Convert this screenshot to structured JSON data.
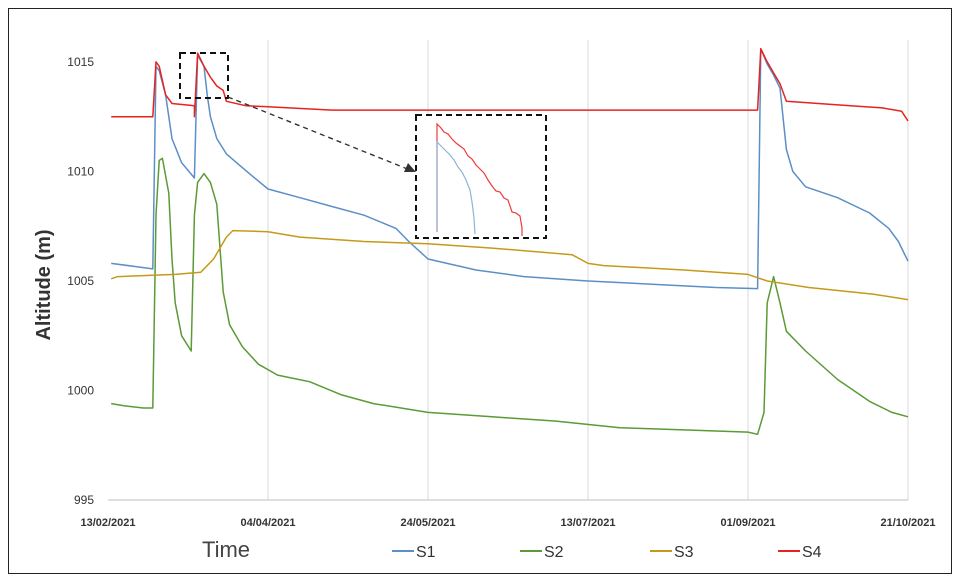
{
  "chart_data": {
    "type": "line",
    "title": "",
    "xlabel": "Time",
    "ylabel": "Altitude (m)",
    "x_ticks": [
      "13/02/2021",
      "04/04/2021",
      "24/05/2021",
      "13/07/2021",
      "01/09/2021",
      "21/10/2021"
    ],
    "x_range": [
      "2021-02-13",
      "2021-10-21"
    ],
    "ylim": [
      995,
      1016
    ],
    "y_ticks": [
      995,
      1000,
      1005,
      1010,
      1015
    ],
    "grid": "vertical",
    "legend": "bottom",
    "series": [
      {
        "name": "S1",
        "color": "#5b8fc7",
        "points": [
          [
            "2021-02-14",
            1005.8
          ],
          [
            "2021-02-22",
            1005.65
          ],
          [
            "2021-02-27",
            1005.55
          ],
          [
            "2021-02-28",
            1014.8
          ],
          [
            "2021-03-01",
            1014.6
          ],
          [
            "2021-03-03",
            1013.5
          ],
          [
            "2021-03-05",
            1011.5
          ],
          [
            "2021-03-08",
            1010.4
          ],
          [
            "2021-03-12",
            1009.7
          ],
          [
            "2021-03-13",
            1015.3
          ],
          [
            "2021-03-15",
            1014.8
          ],
          [
            "2021-03-16",
            1013.5
          ],
          [
            "2021-03-17",
            1012.5
          ],
          [
            "2021-03-19",
            1011.5
          ],
          [
            "2021-03-22",
            1010.8
          ],
          [
            "2021-03-26",
            1010.3
          ],
          [
            "2021-03-30",
            1009.8
          ],
          [
            "2021-04-04",
            1009.2
          ],
          [
            "2021-04-14",
            1008.8
          ],
          [
            "2021-04-24",
            1008.4
          ],
          [
            "2021-05-04",
            1008.0
          ],
          [
            "2021-05-14",
            1007.4
          ],
          [
            "2021-05-18",
            1006.8
          ],
          [
            "2021-05-24",
            1006.0
          ],
          [
            "2021-06-08",
            1005.5
          ],
          [
            "2021-06-23",
            1005.2
          ],
          [
            "2021-07-13",
            1005.0
          ],
          [
            "2021-08-02",
            1004.85
          ],
          [
            "2021-08-22",
            1004.7
          ],
          [
            "2021-09-04",
            1004.65
          ],
          [
            "2021-09-05",
            1015.6
          ],
          [
            "2021-09-07",
            1014.9
          ],
          [
            "2021-09-09",
            1014.4
          ],
          [
            "2021-09-11",
            1013.8
          ],
          [
            "2021-09-13",
            1011.0
          ],
          [
            "2021-09-15",
            1010.0
          ],
          [
            "2021-09-19",
            1009.3
          ],
          [
            "2021-09-29",
            1008.8
          ],
          [
            "2021-10-09",
            1008.1
          ],
          [
            "2021-10-15",
            1007.4
          ],
          [
            "2021-10-18",
            1006.8
          ],
          [
            "2021-10-21",
            1005.9
          ]
        ]
      },
      {
        "name": "S2",
        "color": "#5b9a35",
        "points": [
          [
            "2021-02-14",
            999.4
          ],
          [
            "2021-02-18",
            999.3
          ],
          [
            "2021-02-24",
            999.2
          ],
          [
            "2021-02-27",
            999.2
          ],
          [
            "2021-02-28",
            1008.0
          ],
          [
            "2021-03-01",
            1010.5
          ],
          [
            "2021-03-02",
            1010.6
          ],
          [
            "2021-03-04",
            1009.0
          ],
          [
            "2021-03-05",
            1006.0
          ],
          [
            "2021-03-06",
            1004.0
          ],
          [
            "2021-03-08",
            1002.5
          ],
          [
            "2021-03-11",
            1001.8
          ],
          [
            "2021-03-12",
            1008.0
          ],
          [
            "2021-03-13",
            1009.5
          ],
          [
            "2021-03-15",
            1009.9
          ],
          [
            "2021-03-17",
            1009.5
          ],
          [
            "2021-03-19",
            1008.5
          ],
          [
            "2021-03-21",
            1004.5
          ],
          [
            "2021-03-23",
            1003.0
          ],
          [
            "2021-03-27",
            1002.0
          ],
          [
            "2021-04-01",
            1001.2
          ],
          [
            "2021-04-07",
            1000.7
          ],
          [
            "2021-04-17",
            1000.4
          ],
          [
            "2021-04-27",
            999.8
          ],
          [
            "2021-05-07",
            999.4
          ],
          [
            "2021-05-24",
            999.0
          ],
          [
            "2021-06-13",
            998.8
          ],
          [
            "2021-07-03",
            998.6
          ],
          [
            "2021-07-23",
            998.3
          ],
          [
            "2021-08-12",
            998.2
          ],
          [
            "2021-09-01",
            998.1
          ],
          [
            "2021-09-04",
            998.0
          ],
          [
            "2021-09-06",
            999.0
          ],
          [
            "2021-09-07",
            1004.0
          ],
          [
            "2021-09-09",
            1005.2
          ],
          [
            "2021-09-11",
            1004.0
          ],
          [
            "2021-09-13",
            1002.7
          ],
          [
            "2021-09-19",
            1001.8
          ],
          [
            "2021-09-29",
            1000.5
          ],
          [
            "2021-10-09",
            999.5
          ],
          [
            "2021-10-16",
            999.0
          ],
          [
            "2021-10-21",
            998.8
          ]
        ]
      },
      {
        "name": "S3",
        "color": "#c59a1a",
        "points": [
          [
            "2021-02-14",
            1005.1
          ],
          [
            "2021-02-16",
            1005.2
          ],
          [
            "2021-03-06",
            1005.3
          ],
          [
            "2021-03-14",
            1005.4
          ],
          [
            "2021-03-18",
            1006.0
          ],
          [
            "2021-03-22",
            1007.0
          ],
          [
            "2021-03-24",
            1007.3
          ],
          [
            "2021-04-04",
            1007.25
          ],
          [
            "2021-04-14",
            1007.0
          ],
          [
            "2021-05-04",
            1006.8
          ],
          [
            "2021-05-24",
            1006.7
          ],
          [
            "2021-06-13",
            1006.5
          ],
          [
            "2021-07-08",
            1006.2
          ],
          [
            "2021-07-13",
            1005.8
          ],
          [
            "2021-07-18",
            1005.7
          ],
          [
            "2021-08-12",
            1005.5
          ],
          [
            "2021-09-01",
            1005.3
          ],
          [
            "2021-09-07",
            1005.0
          ],
          [
            "2021-09-20",
            1004.7
          ],
          [
            "2021-10-10",
            1004.4
          ],
          [
            "2021-10-21",
            1004.15
          ]
        ]
      },
      {
        "name": "S4",
        "color": "#e52420",
        "points": [
          [
            "2021-02-14",
            1012.5
          ],
          [
            "2021-02-27",
            1012.5
          ],
          [
            "2021-02-28",
            1015.0
          ],
          [
            "2021-03-01",
            1014.8
          ],
          [
            "2021-03-03",
            1013.5
          ],
          [
            "2021-03-05",
            1013.1
          ],
          [
            "2021-03-12",
            1013.0
          ],
          [
            "2021-03-12",
            1012.5
          ],
          [
            "2021-03-13",
            1015.4
          ],
          [
            "2021-03-15",
            1014.8
          ],
          [
            "2021-03-17",
            1014.3
          ],
          [
            "2021-03-19",
            1013.9
          ],
          [
            "2021-03-21",
            1013.7
          ],
          [
            "2021-03-22",
            1013.2
          ],
          [
            "2021-03-28",
            1013.0
          ],
          [
            "2021-04-04",
            1012.95
          ],
          [
            "2021-04-24",
            1012.8
          ],
          [
            "2021-06-23",
            1012.8
          ],
          [
            "2021-09-04",
            1012.8
          ],
          [
            "2021-09-05",
            1015.6
          ],
          [
            "2021-09-07",
            1015.0
          ],
          [
            "2021-09-09",
            1014.5
          ],
          [
            "2021-09-11",
            1014.0
          ],
          [
            "2021-09-13",
            1013.2
          ],
          [
            "2021-10-03",
            1013.0
          ],
          [
            "2021-10-13",
            1012.9
          ],
          [
            "2021-10-19",
            1012.75
          ],
          [
            "2021-10-21",
            1012.3
          ]
        ]
      }
    ]
  }
}
